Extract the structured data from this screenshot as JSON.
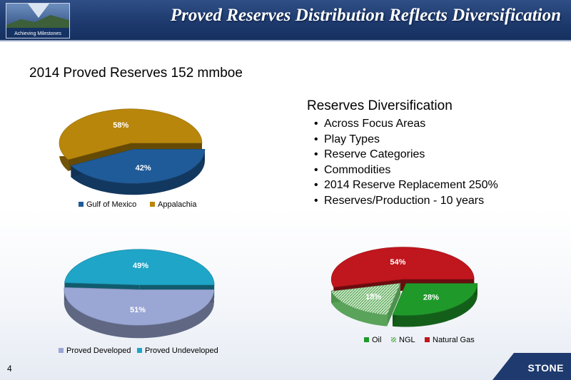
{
  "header": {
    "title": "Proved Reserves Distribution Reflects Diversification",
    "logo_caption": "Achieving Milestones"
  },
  "subtitle": "2014 Proved Reserves 152 mmboe",
  "bullets": {
    "heading": "Reserves Diversification",
    "items": [
      "Across Focus Areas",
      "Play Types",
      "Reserve Categories",
      "Commodities",
      "2014 Reserve Replacement 250%",
      "Reserves/Production - 10 years"
    ]
  },
  "chart_data": [
    {
      "type": "pie",
      "categories": [
        "Gulf of Mexico",
        "Appalachia"
      ],
      "values": [
        42,
        58
      ],
      "labels": [
        "42%",
        "58%"
      ],
      "colors": [
        "#1f5b99",
        "#b8860b"
      ],
      "legend": "bottom"
    },
    {
      "type": "pie",
      "categories": [
        "Proved Developed",
        "Proved Undeveloped"
      ],
      "values": [
        51,
        49
      ],
      "labels": [
        "51%",
        "49%"
      ],
      "colors": [
        "#9aa6d4",
        "#1ea5c8"
      ],
      "legend": "bottom"
    },
    {
      "type": "pie",
      "categories": [
        "Oil",
        "NGL",
        "Natural Gas"
      ],
      "values": [
        28,
        18,
        54
      ],
      "labels": [
        "28%",
        "18%",
        "54%"
      ],
      "colors": [
        "#1f9a2a",
        "#8fd08f",
        "#c0161d"
      ],
      "legend": "bottom"
    }
  ],
  "page_number": "4",
  "corner_logo_text": "STONE"
}
